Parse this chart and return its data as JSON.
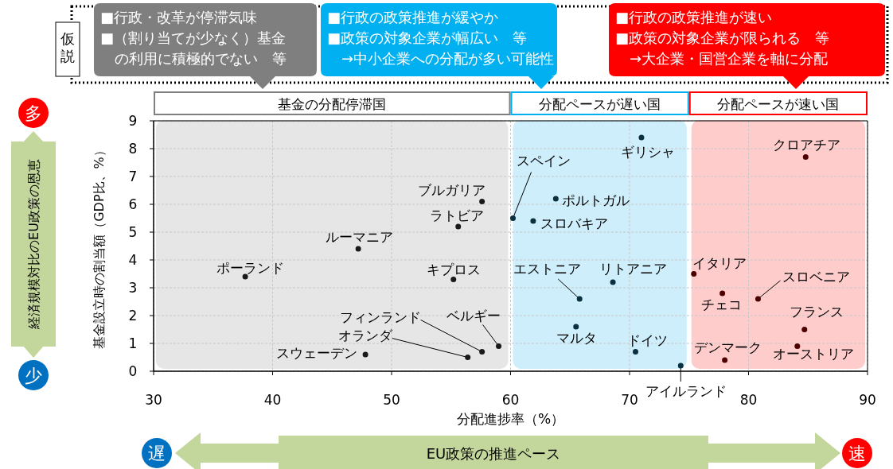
{
  "chart_data": {
    "type": "scatter",
    "xlabel": "分配進捗率（%）",
    "ylabel": "基金設立時の割当額（GDP比、%）",
    "xlim": [
      30,
      90
    ],
    "ylim": [
      0,
      9
    ],
    "xticks": [
      30,
      40,
      50,
      60,
      70,
      80,
      90
    ],
    "yticks": [
      0,
      1,
      2,
      3,
      4,
      5,
      6,
      7,
      8,
      9
    ],
    "grid": true,
    "marker": "circle",
    "x": [
      37.7,
      47.2,
      47.8,
      57.6,
      55.6,
      55.2,
      57.6,
      56.4,
      59.0,
      60.2,
      71.0,
      63.8,
      61.9,
      65.8,
      68.6,
      65.5,
      70.5,
      74.3,
      84.8,
      75.4,
      77.8,
      80.8,
      84.7,
      84.1,
      78.0
    ],
    "values": [
      3.4,
      4.4,
      0.6,
      6.1,
      5.2,
      3.3,
      0.7,
      0.5,
      0.9,
      5.5,
      8.4,
      6.2,
      5.4,
      2.6,
      3.2,
      1.6,
      0.7,
      0.2,
      7.7,
      3.5,
      2.8,
      2.6,
      1.5,
      0.9,
      0.4
    ],
    "value_labels": [
      "ポーランド",
      "ルーマニア",
      "スウェーデン",
      "ブルガリア",
      "ラトビア",
      "キプロス",
      "フィンランド",
      "オランダ",
      "ベルギー",
      "スペイン",
      "ギリシャ",
      "ポルトガル",
      "スロバキア",
      "エストニア",
      "リトアニア",
      "マルタ",
      "ドイツ",
      "アイルランド",
      "クロアチア",
      "イタリア",
      "チェコ",
      "スロベニア",
      "フランス",
      "オーストリア",
      "デンマーク"
    ],
    "colors": [
      "#1a1a1a",
      "#1a1a1a",
      "#1a1a1a",
      "#1a1a1a",
      "#1a1a1a",
      "#1a1a1a",
      "#1a1a1a",
      "#1a1a1a",
      "#1a1a1a",
      "#0b3040",
      "#0b3040",
      "#0b3040",
      "#0b3040",
      "#0b3040",
      "#0b3040",
      "#0b3040",
      "#0b3040",
      "#0b3040",
      "#4d0000",
      "#4d0000",
      "#4d0000",
      "#4d0000",
      "#4d0000",
      "#4d0000",
      "#4d0000"
    ],
    "bands": [
      {
        "axis": "x",
        "from": 30,
        "to": 60,
        "label": "基金の分配停滞国",
        "color": "#e6e6e6"
      },
      {
        "axis": "x",
        "from": 60,
        "to": 75,
        "label": "分配ペースが遅い国",
        "color": "#cdeefa"
      },
      {
        "axis": "x",
        "from": 75,
        "to": 90,
        "label": "分配ペースが速い国",
        "color": "#ffcccc"
      }
    ],
    "annotations": [
      "仮説",
      "■行政・改革が停滞気味",
      "■（割り当てが少なく）基金の利用に積極的でない　等",
      "■行政の政策推進が緩やか",
      "■政策の対象企業が幅広い　等",
      "→中小企業への分配が多い可能性",
      "■行政の政策推進が速い",
      "■政策の対象企業が限られる　等",
      "→大企業・国営企業を軸に分配",
      "多",
      "少",
      "経済規模対比のEU政策の恩恵",
      "遅",
      "速",
      "EU政策の推進ペース"
    ]
  }
}
